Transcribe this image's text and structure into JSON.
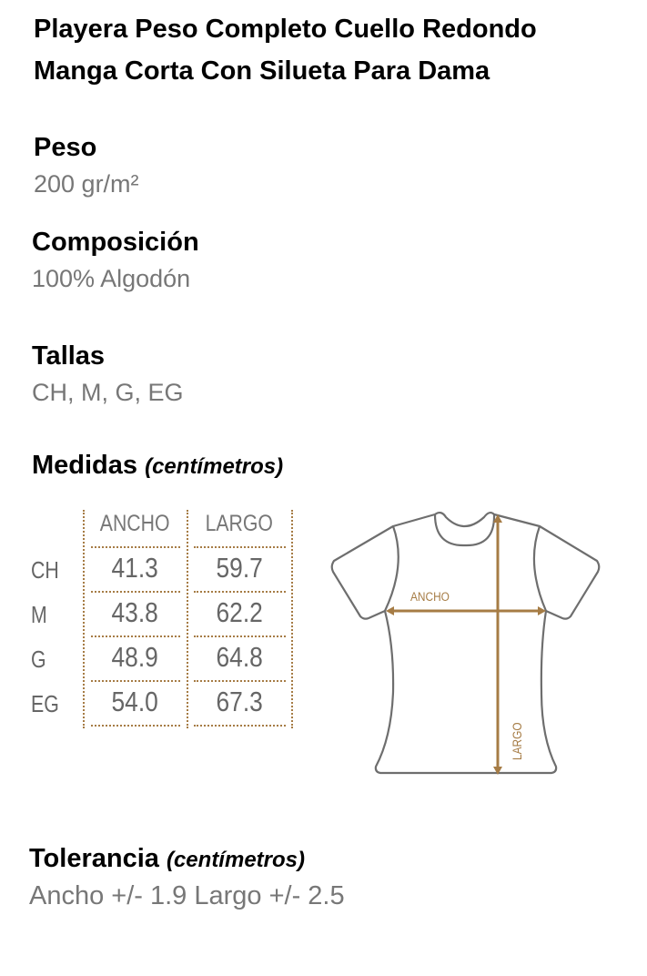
{
  "title": {
    "line1": "Playera Peso Completo Cuello Redondo",
    "line2": "Manga Corta Con Silueta Para Dama"
  },
  "peso": {
    "heading": "Peso",
    "value": "200 gr/m²"
  },
  "composicion": {
    "heading": "Composición",
    "value": "100% Algodón"
  },
  "tallas": {
    "heading": "Tallas",
    "value": "CH, M, G, EG"
  },
  "medidas": {
    "heading": "Medidas",
    "unit": "(centímetros)",
    "columns": [
      "ANCHO",
      "LARGO"
    ],
    "rows": [
      {
        "size": "CH",
        "ancho": "41.3",
        "largo": "59.7"
      },
      {
        "size": "M",
        "ancho": "43.8",
        "largo": "62.2"
      },
      {
        "size": "G",
        "ancho": "48.9",
        "largo": "64.8"
      },
      {
        "size": "EG",
        "ancho": "54.0",
        "largo": "67.3"
      }
    ]
  },
  "diagram": {
    "ancho_label": "ANCHO",
    "largo_label": "LARGO",
    "accent_color": "#a67c45",
    "outline_color": "#6e6e6e"
  },
  "tolerancia": {
    "heading": "Tolerancia",
    "unit": "(centímetros)",
    "value": "Ancho +/- 1.9 Largo +/- 2.5"
  }
}
